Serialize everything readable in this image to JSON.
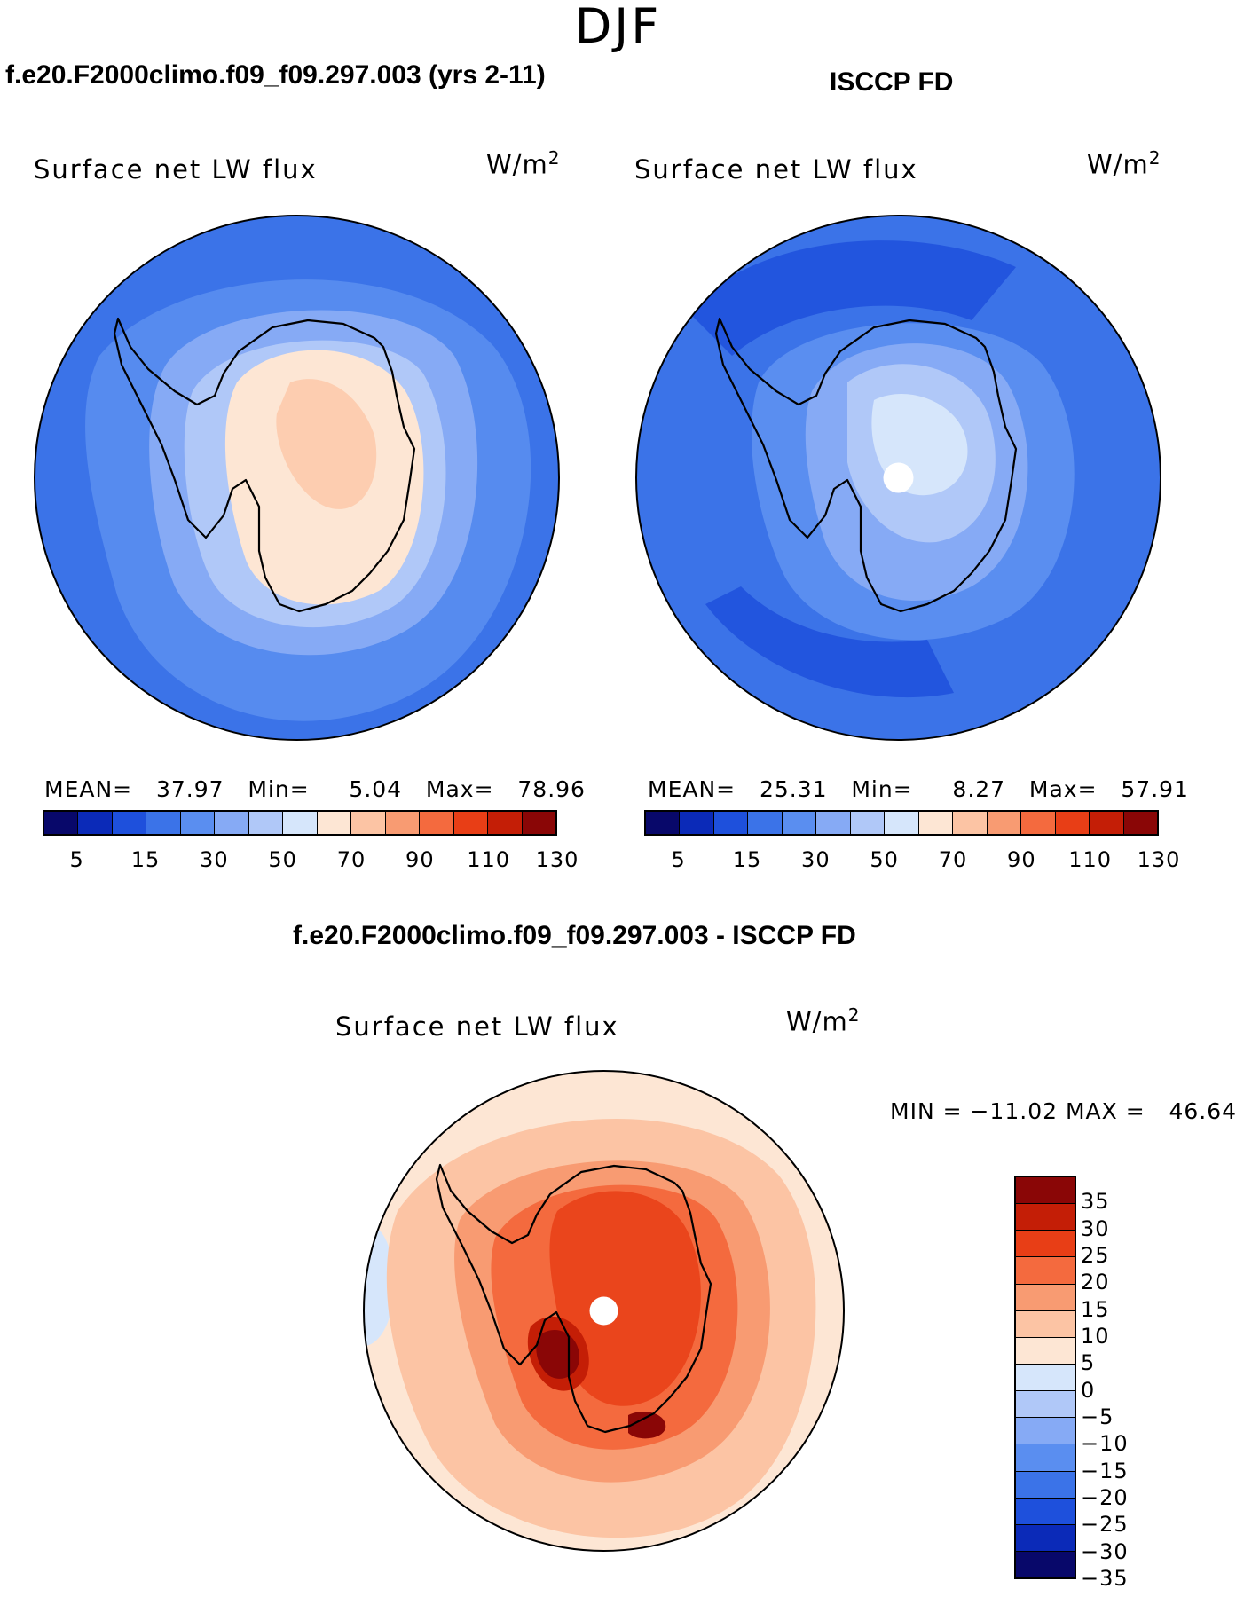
{
  "season": "DJF",
  "panels": {
    "model": {
      "title": "f.e20.F2000climo.f09_f09.297.003 (yrs 2-11)",
      "variable": "Surface net LW flux",
      "units_base": "W/m",
      "units_exp": "2",
      "stats": "MEAN=   37.97   Min=     5.04   Max=   78.96"
    },
    "obs": {
      "title": "ISCCP FD",
      "variable": "Surface net LW flux",
      "units_base": "W/m",
      "units_exp": "2",
      "stats": "MEAN=   25.31   Min=     8.27   Max=   57.91"
    },
    "diff": {
      "title": "f.e20.F2000climo.f09_f09.297.003 - ISCCP FD",
      "variable": "Surface net LW flux",
      "units_base": "W/m",
      "units_exp": "2",
      "stats": "MIN = −11.02 MAX =   46.64"
    }
  },
  "colorbar_abs": {
    "tick_labels": [
      "5",
      "15",
      "30",
      "50",
      "70",
      "90",
      "110",
      "130"
    ],
    "colors": [
      "#08086a",
      "#0b2ab8",
      "#1e50dc",
      "#3b73e8",
      "#5a8ef0",
      "#86aaf5",
      "#b0c8f8",
      "#d6e6fb",
      "#fde6d4",
      "#fcc4a4",
      "#f89b72",
      "#f46a3e",
      "#e83e16",
      "#c41e06",
      "#8a0606"
    ]
  },
  "colorbar_diff": {
    "labels": [
      "35",
      "30",
      "25",
      "20",
      "15",
      "10",
      "5",
      "0",
      "−5",
      "−10",
      "−15",
      "−20",
      "−25",
      "−30",
      "−35"
    ],
    "colors": [
      "#8a0606",
      "#c41e06",
      "#e83e16",
      "#f46a3e",
      "#f89b72",
      "#fcc4a4",
      "#fde6d4",
      "#d6e6fb",
      "#b0c8f8",
      "#86aaf5",
      "#5a8ef0",
      "#3b73e8",
      "#1e50dc",
      "#0b2ab8",
      "#08086a"
    ]
  },
  "colors": {
    "model_ocean": "#3b73e8",
    "model_ring": "#5a8ef0",
    "model_ice": "#86aaf5",
    "model_coast": "#b0c8f8",
    "model_interior": "#fde6d4",
    "model_core": "#fcc4a4",
    "obs_ocean": "#3b73e8",
    "obs_dark": "#1e50dc",
    "obs_ring": "#5a8ef0",
    "obs_inner": "#86aaf5",
    "obs_core": "#b0c8f8",
    "obs_center": "#d6e6fb",
    "diff_ocean": "#fde6d4",
    "diff_ring": "#fcc4a4",
    "diff_ice": "#f89b72",
    "diff_land": "#f46a3e",
    "diff_strong": "#e83e16",
    "diff_max": "#c41e06",
    "diff_peak": "#8a0606",
    "diff_neg": "#d6e6fb",
    "coastline": "#000000"
  }
}
